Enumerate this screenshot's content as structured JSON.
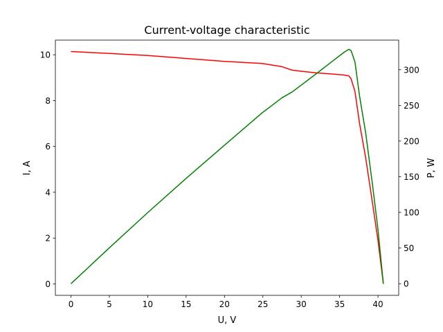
{
  "chart_data": {
    "type": "line",
    "title": "Current-voltage characteristic",
    "xlabel": "U, V",
    "ylabel": "I, A",
    "ylabel_right": "P, W",
    "xlim": [
      -2.03,
      42.7
    ],
    "ylim": [
      -0.5,
      10.64
    ],
    "ylim_right": [
      -16.3,
      341.5
    ],
    "x_ticks": [
      0,
      5,
      10,
      15,
      20,
      25,
      30,
      35,
      40
    ],
    "y_ticks": [
      0,
      2,
      4,
      6,
      8,
      10
    ],
    "y_ticks_right": [
      0,
      50,
      100,
      150,
      200,
      250,
      300
    ],
    "grid": false,
    "series": [
      {
        "axis": "left",
        "color": "#ff0000",
        "points": [
          [
            0,
            10.14
          ],
          [
            5,
            10.06
          ],
          [
            10,
            9.97
          ],
          [
            15,
            9.84
          ],
          [
            20,
            9.71
          ],
          [
            24.9,
            9.62
          ],
          [
            27.5,
            9.48
          ],
          [
            28.8,
            9.33
          ],
          [
            30,
            9.28
          ],
          [
            32,
            9.21
          ],
          [
            34,
            9.16
          ],
          [
            35.5,
            9.12
          ],
          [
            36.2,
            9.08
          ],
          [
            36.5,
            8.95
          ],
          [
            37,
            8.4
          ],
          [
            37.6,
            7.0
          ],
          [
            38.4,
            5.5
          ],
          [
            39.3,
            3.5
          ],
          [
            40,
            1.9
          ],
          [
            40.7,
            0.0
          ]
        ]
      },
      {
        "axis": "right",
        "color": "#008000",
        "points": [
          [
            0,
            0
          ],
          [
            5,
            50.3
          ],
          [
            10,
            99.7
          ],
          [
            15,
            147.6
          ],
          [
            20,
            194.2
          ],
          [
            24.9,
            239.5
          ],
          [
            27.5,
            260.7
          ],
          [
            28.8,
            268.7
          ],
          [
            30,
            278.4
          ],
          [
            32,
            294.7
          ],
          [
            34,
            311.4
          ],
          [
            35.5,
            323.8
          ],
          [
            36.2,
            328.7
          ],
          [
            36.5,
            326.7
          ],
          [
            37,
            310.8
          ],
          [
            37.6,
            263.2
          ],
          [
            38.4,
            211.2
          ],
          [
            39.3,
            137.6
          ],
          [
            40,
            76.0
          ],
          [
            40.7,
            0.0
          ]
        ]
      }
    ]
  }
}
